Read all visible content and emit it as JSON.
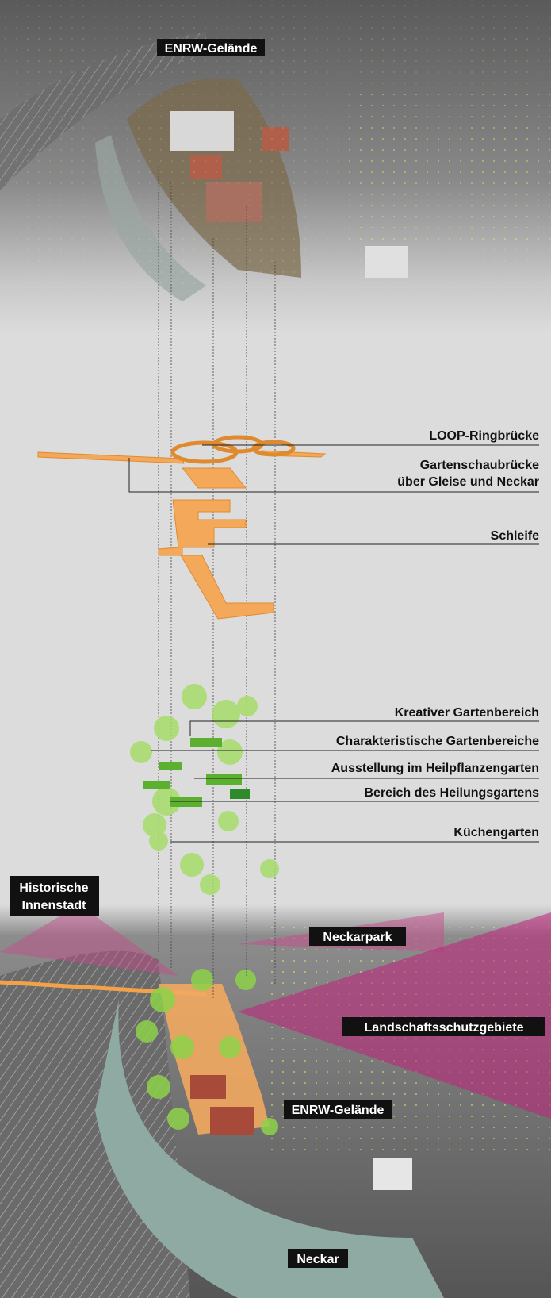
{
  "top_photo": {
    "label": "ENRW-Gelände"
  },
  "bridge_layer": {
    "labels": [
      {
        "lines": [
          "LOOP-Ringbrücke"
        ]
      },
      {
        "lines": [
          "Gartenschaubrücke",
          "über Gleise und Neckar"
        ]
      },
      {
        "lines": [
          "Schleife"
        ]
      }
    ]
  },
  "garden_layer": {
    "labels": [
      {
        "lines": [
          "Kreativer Gartenbereich"
        ]
      },
      {
        "lines": [
          "Charakteristische Gartenbereiche"
        ]
      },
      {
        "lines": [
          "Ausstellung im Heilpflanzengarten"
        ]
      },
      {
        "lines": [
          "Bereich des Heilungsgartens"
        ]
      },
      {
        "lines": [
          "Küchengarten"
        ]
      }
    ]
  },
  "bottom_photo": {
    "labels": [
      {
        "lines": [
          "Historische",
          "Innenstadt"
        ]
      },
      {
        "lines": [
          "Neckarpark"
        ]
      },
      {
        "lines": [
          "Landschaftsschutzgebiete"
        ]
      },
      {
        "lines": [
          "ENRW-Gelände"
        ]
      },
      {
        "lines": [
          "Neckar"
        ]
      }
    ]
  }
}
